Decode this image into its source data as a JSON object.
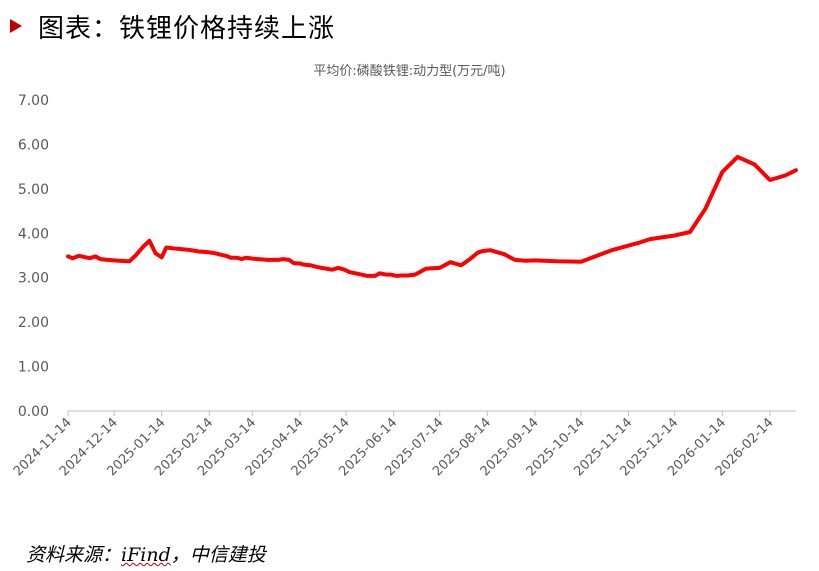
{
  "header": {
    "title": "图表：铁锂价格持续上涨"
  },
  "source": {
    "prefix": "资料来源：",
    "name": "iFind",
    "suffix": "，中信建投"
  },
  "chart_data": {
    "type": "line",
    "title": "平均价:磷酸铁锂:动力型(万元/吨)",
    "xlabel": "",
    "ylabel": "",
    "ylim": [
      0,
      7
    ],
    "yticks": [
      "0.00",
      "1.00",
      "2.00",
      "3.00",
      "4.00",
      "5.00",
      "6.00",
      "7.00"
    ],
    "grid": false,
    "legend": "none",
    "color": "#ff0000",
    "xticks": [
      "2024-11-14",
      "2024-12-14",
      "2025-01-14",
      "2025-02-14",
      "2025-03-14",
      "2025-04-14",
      "2025-05-14",
      "2025-06-14",
      "2025-07-14",
      "2025-08-14",
      "2025-09-14",
      "2025-10-14",
      "2025-11-14",
      "2025-12-14",
      "2026-01-14",
      "2026-02-14"
    ],
    "x": [
      "2024-11-14",
      "2024-11-17",
      "2024-11-21",
      "2024-11-24",
      "2024-11-28",
      "2024-12-02",
      "2024-12-05",
      "2024-12-10",
      "2024-12-17",
      "2024-12-24",
      "2024-12-28",
      "2025-01-02",
      "2025-01-06",
      "2025-01-10",
      "2025-01-14",
      "2025-01-17",
      "2025-01-24",
      "2025-01-31",
      "2025-02-04",
      "2025-02-07",
      "2025-02-11",
      "2025-02-14",
      "2025-02-18",
      "2025-02-21",
      "2025-02-25",
      "2025-02-28",
      "2025-03-04",
      "2025-03-07",
      "2025-03-10",
      "2025-03-14",
      "2025-03-18",
      "2025-03-24",
      "2025-03-31",
      "2025-04-03",
      "2025-04-07",
      "2025-04-10",
      "2025-04-14",
      "2025-04-17",
      "2025-04-21",
      "2025-04-24",
      "2025-04-28",
      "2025-05-05",
      "2025-05-09",
      "2025-05-13",
      "2025-05-16",
      "2025-05-20",
      "2025-05-24",
      "2025-05-28",
      "2025-06-02",
      "2025-06-05",
      "2025-06-09",
      "2025-06-12",
      "2025-06-16",
      "2025-06-19",
      "2025-06-23",
      "2025-06-28",
      "2025-07-05",
      "2025-07-08",
      "2025-07-14",
      "2025-07-21",
      "2025-07-28",
      "2025-08-02",
      "2025-08-08",
      "2025-08-11",
      "2025-08-16",
      "2025-08-21",
      "2025-08-25",
      "2025-09-01",
      "2025-09-08",
      "2025-09-14",
      "2025-09-20",
      "2025-09-28",
      "2025-10-14",
      "2025-11-03",
      "2025-11-20",
      "2025-11-28",
      "2025-12-14",
      "2025-12-24",
      "2026-01-03",
      "2026-01-14",
      "2026-01-24",
      "2026-02-04",
      "2026-02-14",
      "2026-02-24",
      "2026-03-03"
    ],
    "series": [
      {
        "values": [
          3.48,
          3.44,
          3.49,
          3.47,
          3.44,
          3.48,
          3.42,
          3.4,
          3.38,
          3.37,
          3.5,
          3.7,
          3.83,
          3.55,
          3.46,
          3.68,
          3.65,
          3.63,
          3.61,
          3.59,
          3.58,
          3.57,
          3.55,
          3.52,
          3.49,
          3.45,
          3.45,
          3.42,
          3.45,
          3.43,
          3.42,
          3.4,
          3.4,
          3.42,
          3.4,
          3.33,
          3.32,
          3.29,
          3.28,
          3.25,
          3.22,
          3.18,
          3.22,
          3.18,
          3.13,
          3.1,
          3.07,
          3.04,
          3.04,
          3.1,
          3.07,
          3.07,
          3.04,
          3.05,
          3.05,
          3.07,
          3.2,
          3.21,
          3.22,
          3.35,
          3.28,
          3.4,
          3.57,
          3.6,
          3.62,
          3.57,
          3.53,
          3.4,
          3.38,
          3.39,
          3.38,
          3.37,
          3.36,
          3.62,
          3.78,
          3.87,
          3.95,
          4.03,
          4.55,
          5.38,
          5.72,
          5.55,
          5.2,
          5.3,
          5.42
        ]
      }
    ]
  }
}
